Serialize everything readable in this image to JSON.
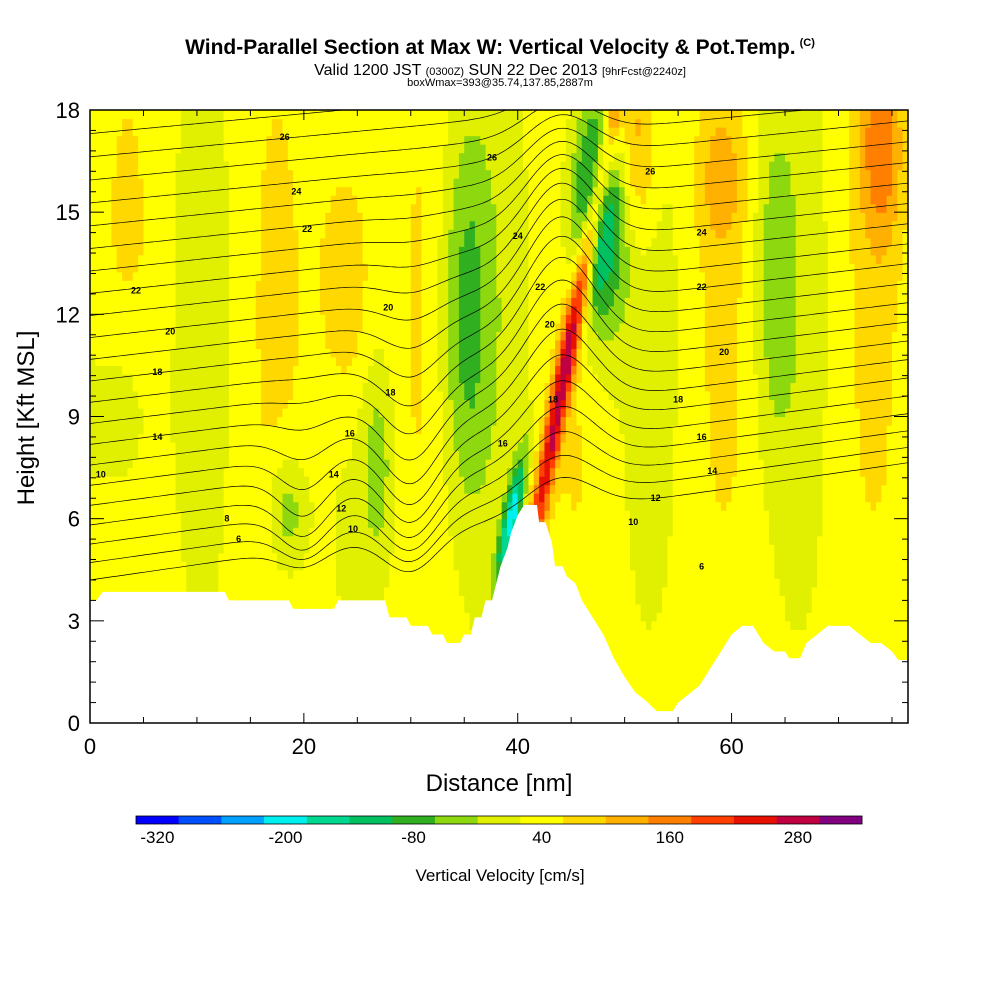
{
  "title": {
    "main": "Wind-Parallel Section at Max W: Vertical Velocity & Pot.Temp.",
    "main_unit": "(C)",
    "valid_a": "Valid 1200 JST",
    "valid_b": "(0300Z)",
    "valid_c": "SUN 22 Dec 2013",
    "valid_d": "[9hrFcst@2240z]",
    "box": "boxWmax=393@35.74,137.85,2887m"
  },
  "chart_data": {
    "type": "heatmap",
    "title": "Wind-Parallel Section at Max W: Vertical Velocity & Pot.Temp.",
    "xlabel": "Distance [nm]",
    "ylabel": "Height [Kft MSL]",
    "xlim": [
      0,
      76.5
    ],
    "ylim": [
      0,
      18
    ],
    "x_ticks": [
      "0",
      "20",
      "40",
      "60"
    ],
    "y_ticks": [
      "0",
      "3",
      "6",
      "9",
      "12",
      "15",
      "18"
    ],
    "colorbar": {
      "label": "Vertical Velocity [cm/s]",
      "tick_labels": [
        "-320",
        "-200",
        "-80",
        "40",
        "160",
        "280"
      ],
      "levels": [
        -340,
        -300,
        -260,
        -220,
        -180,
        -140,
        -100,
        -60,
        -20,
        20,
        60,
        100,
        140,
        180,
        220,
        260,
        300,
        340
      ],
      "colors": [
        "#0000ff",
        "#0050ff",
        "#00a0ff",
        "#00f0f0",
        "#00d890",
        "#00c060",
        "#30b020",
        "#8ed810",
        "#e0f000",
        "#ffff00",
        "#ffd800",
        "#ffb000",
        "#ff8000",
        "#ff4000",
        "#e81000",
        "#c00040",
        "#800080"
      ]
    },
    "terrain_kft": [
      [
        0,
        3.6
      ],
      [
        0.6,
        3.6
      ],
      [
        1.2,
        3.85
      ],
      [
        12.6,
        3.85
      ],
      [
        13.0,
        3.6
      ],
      [
        18.6,
        3.6
      ],
      [
        19.0,
        3.35
      ],
      [
        22.8,
        3.35
      ],
      [
        23.2,
        3.6
      ],
      [
        27.6,
        3.6
      ],
      [
        28.0,
        3.1
      ],
      [
        29.6,
        3.1
      ],
      [
        30.0,
        2.85
      ],
      [
        31.6,
        2.85
      ],
      [
        32.0,
        2.6
      ],
      [
        33.0,
        2.6
      ],
      [
        33.4,
        2.35
      ],
      [
        34.6,
        2.35
      ],
      [
        35.0,
        2.6
      ],
      [
        35.6,
        2.6
      ],
      [
        36.0,
        3.1
      ],
      [
        36.6,
        3.1
      ],
      [
        37.0,
        3.6
      ],
      [
        37.6,
        3.6
      ],
      [
        38.0,
        4.1
      ],
      [
        38.4,
        4.6
      ],
      [
        39.0,
        5.1
      ],
      [
        39.4,
        5.6
      ],
      [
        40.0,
        6.1
      ],
      [
        40.6,
        6.4
      ],
      [
        41.8,
        6.4
      ],
      [
        42.0,
        5.9
      ],
      [
        42.6,
        5.9
      ],
      [
        43.2,
        5.3
      ],
      [
        43.5,
        4.6
      ],
      [
        44.2,
        4.6
      ],
      [
        44.6,
        4.3
      ],
      [
        45.4,
        4.1
      ],
      [
        46.0,
        3.6
      ],
      [
        47.0,
        3.1
      ],
      [
        48.0,
        2.6
      ],
      [
        49.0,
        1.9
      ],
      [
        50.0,
        1.35
      ],
      [
        51.0,
        0.9
      ],
      [
        52.0,
        0.65
      ],
      [
        53.0,
        0.35
      ],
      [
        54.5,
        0.35
      ],
      [
        55.0,
        0.6
      ],
      [
        56.0,
        0.85
      ],
      [
        57.0,
        1.1
      ],
      [
        58.0,
        1.6
      ],
      [
        59.0,
        2.1
      ],
      [
        60.0,
        2.6
      ],
      [
        61.0,
        2.85
      ],
      [
        62.0,
        2.85
      ],
      [
        63.0,
        2.35
      ],
      [
        64.0,
        2.1
      ],
      [
        65.0,
        2.1
      ],
      [
        65.4,
        1.9
      ],
      [
        66.4,
        1.9
      ],
      [
        67.0,
        2.35
      ],
      [
        68.0,
        2.6
      ],
      [
        69.0,
        2.85
      ],
      [
        70.0,
        2.85
      ],
      [
        71.0,
        2.85
      ],
      [
        72.0,
        2.6
      ],
      [
        73.0,
        2.35
      ],
      [
        74.0,
        2.35
      ],
      [
        75.0,
        2.1
      ],
      [
        75.6,
        1.85
      ],
      [
        76.5,
        1.85
      ]
    ],
    "theta_contour_labels": [
      {
        "text": "26",
        "x": 18.2,
        "y": 17.2
      },
      {
        "text": "24",
        "x": 19.3,
        "y": 15.6
      },
      {
        "text": "22",
        "x": 20.3,
        "y": 14.5
      },
      {
        "text": "22",
        "x": 4.3,
        "y": 12.7
      },
      {
        "text": "20",
        "x": 7.5,
        "y": 11.5
      },
      {
        "text": "18",
        "x": 6.3,
        "y": 10.3
      },
      {
        "text": "14",
        "x": 6.3,
        "y": 8.4
      },
      {
        "text": "10",
        "x": 1.0,
        "y": 7.3
      },
      {
        "text": "8",
        "x": 12.8,
        "y": 6.0
      },
      {
        "text": "6",
        "x": 13.9,
        "y": 5.4
      },
      {
        "text": "16",
        "x": 24.3,
        "y": 8.5
      },
      {
        "text": "14",
        "x": 22.8,
        "y": 7.3
      },
      {
        "text": "12",
        "x": 23.5,
        "y": 6.3
      },
      {
        "text": "10",
        "x": 24.6,
        "y": 5.7
      },
      {
        "text": "20",
        "x": 27.9,
        "y": 12.2
      },
      {
        "text": "18",
        "x": 28.1,
        "y": 9.7
      },
      {
        "text": "26",
        "x": 37.6,
        "y": 16.6
      },
      {
        "text": "24",
        "x": 40.0,
        "y": 14.3
      },
      {
        "text": "22",
        "x": 42.1,
        "y": 12.8
      },
      {
        "text": "20",
        "x": 43.0,
        "y": 11.7
      },
      {
        "text": "18",
        "x": 43.3,
        "y": 9.5
      },
      {
        "text": "16",
        "x": 38.6,
        "y": 8.2
      },
      {
        "text": "26",
        "x": 52.4,
        "y": 16.2
      },
      {
        "text": "24",
        "x": 57.2,
        "y": 14.4
      },
      {
        "text": "22",
        "x": 57.2,
        "y": 12.8
      },
      {
        "text": "20",
        "x": 59.3,
        "y": 10.9
      },
      {
        "text": "18",
        "x": 55.0,
        "y": 9.5
      },
      {
        "text": "16",
        "x": 57.2,
        "y": 8.4
      },
      {
        "text": "14",
        "x": 58.2,
        "y": 7.4
      },
      {
        "text": "12",
        "x": 52.9,
        "y": 6.6
      },
      {
        "text": "10",
        "x": 50.8,
        "y": 5.9
      },
      {
        "text": "6",
        "x": 57.2,
        "y": 4.6
      }
    ]
  }
}
